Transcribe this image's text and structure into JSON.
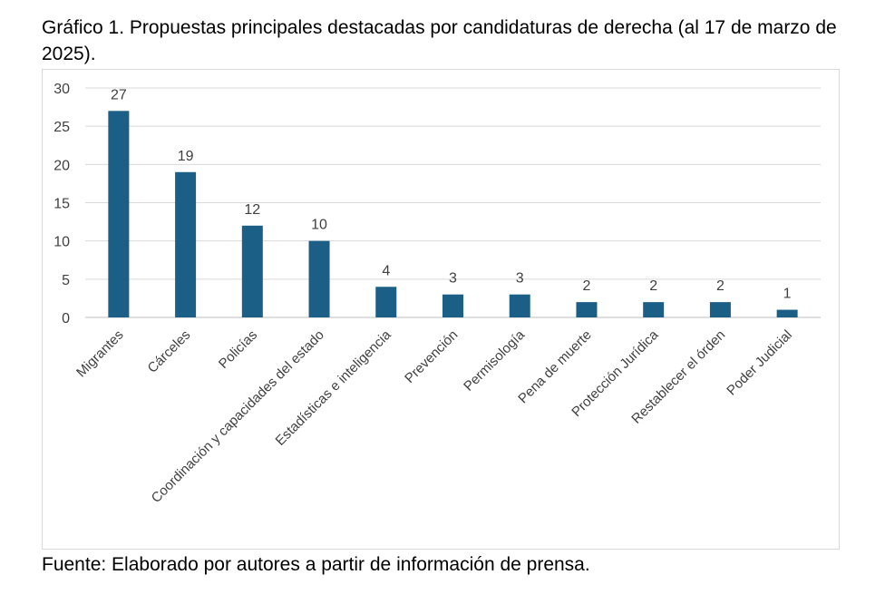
{
  "title": "Gráfico 1. Propuestas principales destacadas por candidaturas de derecha (al 17 de marzo de 2025).",
  "source": "Fuente: Elaborado por autores a partir de información de prensa.",
  "colors": {
    "bar": "#1b5f86",
    "grid": "#d9d9d9",
    "axis": "#bfbfbf",
    "text": "#404040"
  },
  "chart_data": {
    "type": "bar",
    "categories": [
      "Migrantes",
      "Cárceles",
      "Policías",
      "Coordinación y capacidades del estado",
      "Estadísticas e inteligencia",
      "Prevención",
      "Permisología",
      "Pena de muerte",
      "Protección Jurídica",
      "Restablecer el órden",
      "Poder Judicial"
    ],
    "values": [
      27,
      19,
      12,
      10,
      4,
      3,
      3,
      2,
      2,
      2,
      1
    ],
    "ylim": [
      0,
      30
    ],
    "yticks": [
      0,
      5,
      10,
      15,
      20,
      25,
      30
    ],
    "grid": true,
    "legend": "none",
    "data_labels": true
  }
}
